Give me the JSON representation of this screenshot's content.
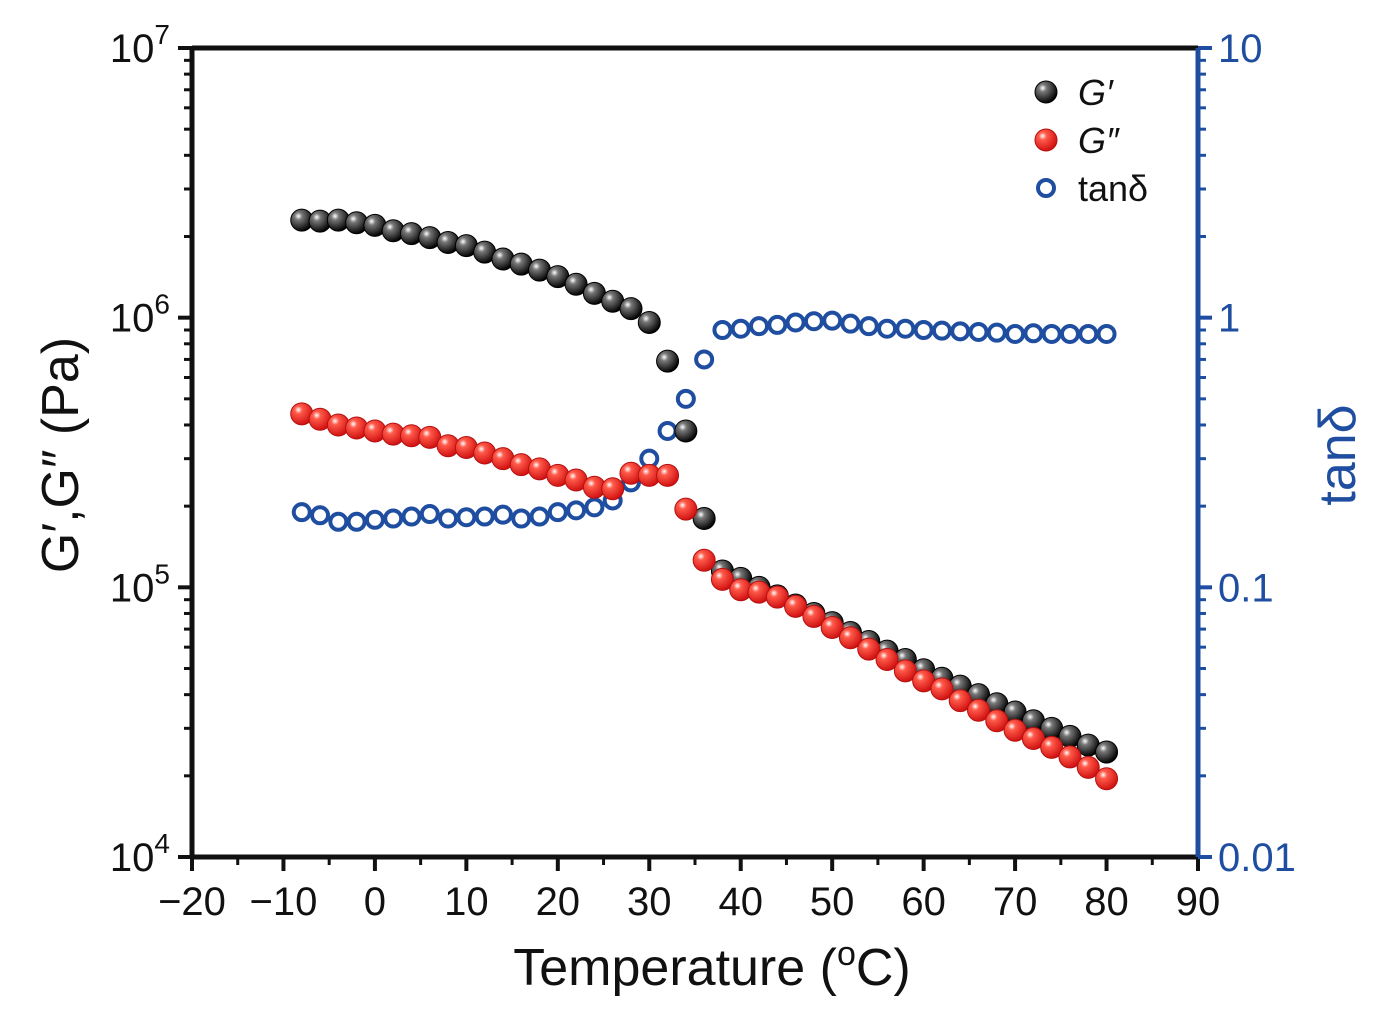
{
  "chart_data": {
    "type": "scatter",
    "title": "",
    "xlabel": "Temperature (oC)",
    "xlabel_parts": {
      "main": "Temperature (",
      "superscript": "o",
      "unit": "C)"
    },
    "ylabel_left": "G′,G″ (Pa)",
    "ylabel_right": "tanδ",
    "xlim": [
      -20,
      90
    ],
    "x_ticks": [
      -20,
      -10,
      0,
      10,
      20,
      30,
      40,
      50,
      60,
      70,
      80,
      90
    ],
    "x_tick_labels": [
      "−20",
      "−10",
      "0",
      "10",
      "20",
      "30",
      "40",
      "50",
      "60",
      "70",
      "80",
      "90"
    ],
    "y_left": {
      "scale": "log",
      "range": [
        10000,
        10000000
      ],
      "ticks": [
        {
          "base": "10",
          "exp": "4",
          "value": 10000
        },
        {
          "base": "10",
          "exp": "5",
          "value": 100000
        },
        {
          "base": "10",
          "exp": "6",
          "value": 1000000
        },
        {
          "base": "10",
          "exp": "7",
          "value": 10000000
        }
      ]
    },
    "y_right": {
      "scale": "log",
      "range": [
        0.01,
        10
      ],
      "color": "#1f4ea1",
      "ticks": [
        {
          "label": "0.01",
          "value": 0.01
        },
        {
          "label": "0.1",
          "value": 0.1
        },
        {
          "label": "1",
          "value": 1
        },
        {
          "label": "10",
          "value": 10
        }
      ]
    },
    "legend_position": "top-right",
    "x": [
      -8,
      -6,
      -4,
      -2,
      0,
      2,
      4,
      6,
      8,
      10,
      12,
      14,
      16,
      18,
      20,
      22,
      24,
      26,
      28,
      30,
      32,
      34,
      36,
      38,
      40,
      42,
      44,
      46,
      48,
      50,
      52,
      54,
      56,
      58,
      60,
      62,
      64,
      66,
      68,
      70,
      72,
      74,
      76,
      78,
      80
    ],
    "series": [
      {
        "name": "G′",
        "axis": "left",
        "color": "#111111",
        "marker": "filled-sphere",
        "values": [
          2300000,
          2280000,
          2300000,
          2250000,
          2200000,
          2100000,
          2050000,
          1980000,
          1900000,
          1850000,
          1750000,
          1650000,
          1580000,
          1500000,
          1420000,
          1330000,
          1230000,
          1150000,
          1080000,
          960000,
          690000,
          380000,
          180000,
          115000,
          108000,
          100000,
          93000,
          86000,
          80000,
          74000,
          68000,
          63000,
          58000,
          54000,
          49500,
          46000,
          43000,
          40000,
          37000,
          34500,
          32000,
          30000,
          28000,
          26000,
          24500
        ]
      },
      {
        "name": "G″",
        "axis": "left",
        "color": "#e8231d",
        "marker": "filled-sphere",
        "values": [
          440000,
          420000,
          400000,
          390000,
          380000,
          370000,
          365000,
          360000,
          335000,
          330000,
          315000,
          300000,
          285000,
          275000,
          260000,
          250000,
          235000,
          232000,
          265000,
          260000,
          260000,
          195000,
          126000,
          107000,
          98000,
          96000,
          92000,
          85000,
          78000,
          71000,
          65000,
          59000,
          54000,
          49000,
          45000,
          42000,
          38000,
          35000,
          32000,
          29500,
          27500,
          25500,
          23500,
          21500,
          19500
        ]
      },
      {
        "name": "tanδ",
        "axis": "right",
        "color": "#1f4ea1",
        "marker": "open-circle",
        "values": [
          0.19,
          0.185,
          0.175,
          0.175,
          0.178,
          0.18,
          0.183,
          0.187,
          0.18,
          0.182,
          0.183,
          0.186,
          0.18,
          0.183,
          0.19,
          0.193,
          0.198,
          0.21,
          0.245,
          0.3,
          0.38,
          0.5,
          0.7,
          0.9,
          0.91,
          0.93,
          0.94,
          0.96,
          0.97,
          0.975,
          0.95,
          0.93,
          0.91,
          0.91,
          0.9,
          0.895,
          0.89,
          0.885,
          0.88,
          0.87,
          0.875,
          0.87,
          0.87,
          0.87,
          0.87
        ]
      }
    ]
  }
}
